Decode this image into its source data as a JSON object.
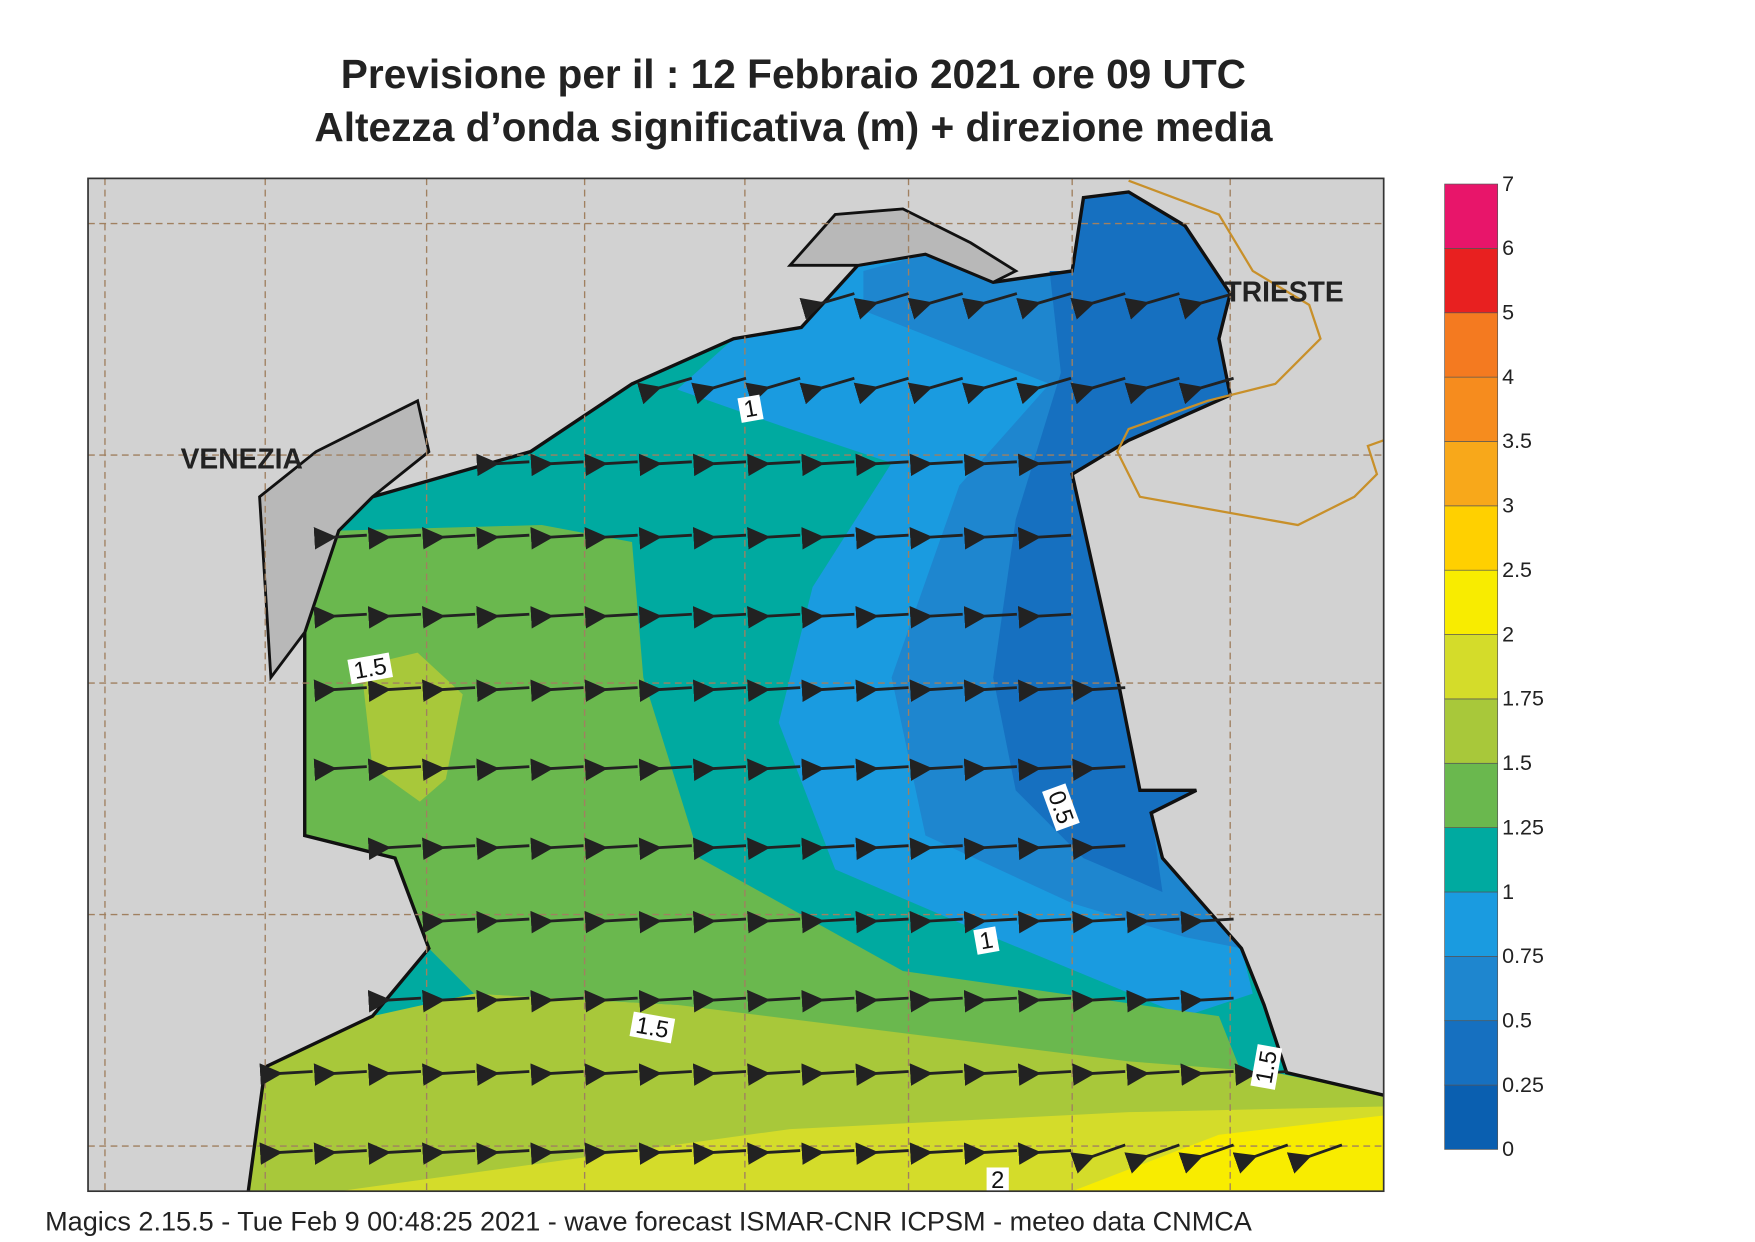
{
  "header": {
    "title": "Previsione per il  :  12  Febbraio 2021   ore 09 UTC",
    "subtitle": "Altezza d’onda significativa (m) + direzione media"
  },
  "map": {
    "places": [
      "VENEZIA",
      "TRIESTE"
    ],
    "contour_labels": [
      "1",
      "1.5",
      "0.5",
      "1",
      "1.5",
      "1.5",
      "2"
    ]
  },
  "legend": {
    "levels": [
      0,
      0.25,
      0.5,
      0.75,
      1,
      1.25,
      1.5,
      1.75,
      2,
      2.5,
      3,
      3.5,
      4,
      5,
      6,
      7
    ],
    "colors": [
      "#0a5fb0",
      "#1670c0",
      "#1e86cf",
      "#1a9be0",
      "#00aaa0",
      "#6ab84e",
      "#a8c83a",
      "#d4dc2a",
      "#f8ec00",
      "#ffd000",
      "#f8a81a",
      "#f68c1e",
      "#f47a20",
      "#e82020",
      "#e8156a"
    ]
  },
  "footer": "Magics 2.15.5 - Tue Feb  9 00:48:25 2021 - wave forecast  ISMAR-CNR  ICPSM - meteo data   CNMCA"
}
